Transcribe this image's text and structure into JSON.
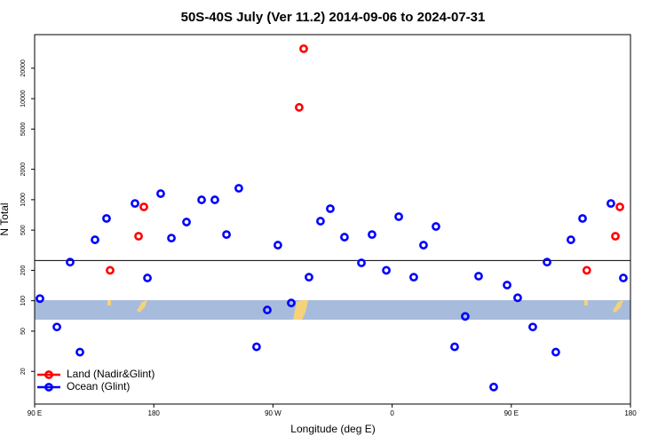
{
  "chart_data": {
    "type": "scatter",
    "title": "50S-40S July (Ver 11.2)   2014-09-06 to 2024-07-31",
    "x_label": "Longitude (deg E)",
    "y_label": "N Total",
    "xlim": [
      90,
      540
    ],
    "xticks": [
      {
        "value": 90,
        "label": "90 E"
      },
      180,
      {
        "value": 270,
        "label": "90 W"
      },
      {
        "value": 360,
        "label": "0"
      },
      {
        "value": 450,
        "label": "90 E"
      },
      {
        "value": 540,
        "label": "180"
      }
    ],
    "ylim": [
      9.5,
      43000
    ],
    "log_y": true,
    "yticks": [
      20,
      50,
      100,
      200,
      500,
      1000,
      2000,
      5000,
      10000,
      20000
    ],
    "hline": 250,
    "legend": "bottom-left",
    "series": [
      {
        "name": "Land (Nadir&Glint)",
        "color": "#ff0000",
        "x": [
          147,
          168.5,
          172.5,
          289.8,
          293.2,
          507,
          528.6,
          532
        ],
        "values": [
          200,
          435,
          848,
          8190,
          31200,
          200,
          435,
          848
        ]
      },
      {
        "name": "Ocean (Glint)",
        "color": "#0000ff",
        "x": [
          94,
          106.8,
          116.8,
          124.2,
          135.6,
          144.3,
          165.8,
          175.2,
          185.2,
          193.3,
          204.7,
          216.1,
          226.1,
          234.9,
          244.2,
          257.6,
          265.7,
          273.7,
          283.8,
          297.2,
          305.9,
          313.3,
          324,
          336.8,
          344.8,
          355.6,
          365,
          376.3,
          383.7,
          393.1,
          407.2,
          415.2,
          425.3,
          436.7,
          446.8,
          454.8,
          466.2,
          477,
          483.6,
          495,
          503.8,
          525.2,
          534.6
        ],
        "values": [
          105,
          55,
          241,
          31,
          401,
          652,
          918,
          168,
          1148,
          417,
          601,
          996,
          996,
          452,
          1297,
          35,
          81,
          355,
          95,
          171,
          613,
          815,
          426,
          237,
          452,
          200,
          679,
          171,
          355,
          543,
          35,
          70,
          175,
          14,
          143,
          107,
          55,
          241,
          31,
          401,
          652,
          918,
          168
        ]
      }
    ]
  }
}
